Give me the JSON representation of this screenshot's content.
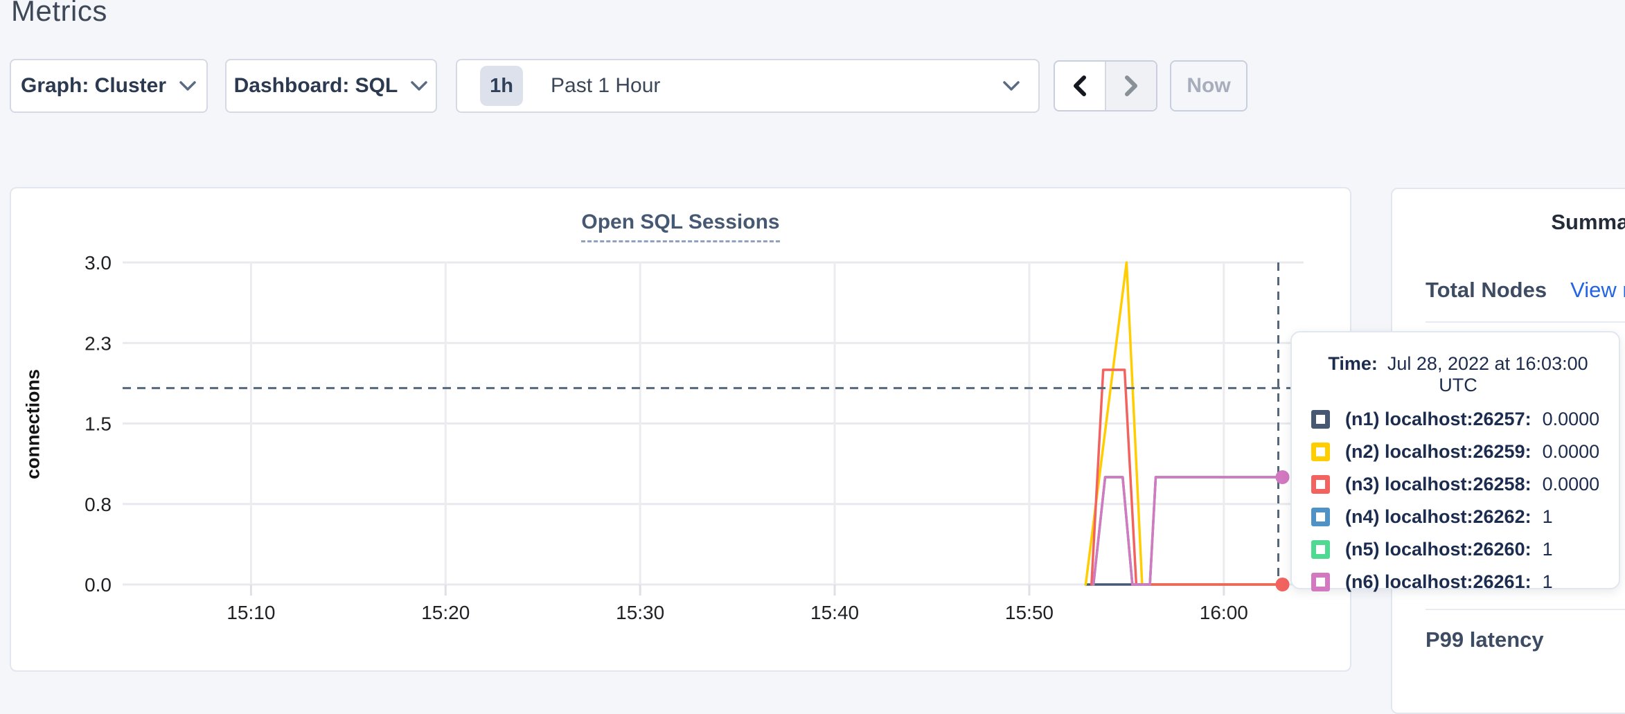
{
  "page": {
    "title": "Metrics"
  },
  "toolbar": {
    "graph_dropdown_label": "Graph: Cluster",
    "dashboard_dropdown_label": "Dashboard: SQL",
    "time_window": {
      "badge": "1h",
      "label": "Past 1 Hour"
    },
    "now_button_label": "Now"
  },
  "chart_data": {
    "type": "line",
    "title": "Open SQL Sessions",
    "ylabel": "connections",
    "ylim": [
      0,
      3.0
    ],
    "grid": true,
    "y_ticks": [
      {
        "v": 0.0,
        "label": "0.0"
      },
      {
        "v": 0.75,
        "label": "0.8"
      },
      {
        "v": 1.5,
        "label": "1.5"
      },
      {
        "v": 2.25,
        "label": "2.3"
      },
      {
        "v": 3.0,
        "label": "3.0"
      }
    ],
    "x_ticks": [
      {
        "t": 10,
        "label": "15:10"
      },
      {
        "t": 20,
        "label": "15:20"
      },
      {
        "t": 30,
        "label": "15:30"
      },
      {
        "t": 40,
        "label": "15:40"
      },
      {
        "t": 50,
        "label": "15:50"
      },
      {
        "t": 60,
        "label": "16:00"
      }
    ],
    "x_domain_minutes_after_1500": [
      3.4,
      64.1
    ],
    "series": [
      {
        "name": "(n1) localhost:26257",
        "color": "#475872",
        "points": [
          [
            52.9,
            0
          ],
          [
            62.8,
            0
          ]
        ]
      },
      {
        "name": "(n2) localhost:26259",
        "color": "#ffcd00",
        "points": [
          [
            52.9,
            0
          ],
          [
            55.0,
            3
          ],
          [
            55.8,
            0
          ],
          [
            62.8,
            0
          ]
        ]
      },
      {
        "name": "(n3) localhost:26258",
        "color": "#f2635f",
        "points": [
          [
            53.2,
            0
          ],
          [
            53.8,
            2
          ],
          [
            54.9,
            2
          ],
          [
            55.5,
            0
          ],
          [
            62.8,
            0
          ]
        ]
      },
      {
        "name": "(n4) localhost:26262",
        "color": "#4f93c6",
        "points": [
          [
            53.3,
            0
          ],
          [
            53.9,
            1
          ],
          [
            54.8,
            1
          ],
          [
            55.3,
            0
          ],
          [
            56.2,
            0
          ],
          [
            56.5,
            1
          ],
          [
            62.8,
            1
          ]
        ]
      },
      {
        "name": "(n5) localhost:26260",
        "color": "#4fd992",
        "points": [
          [
            53.3,
            0
          ],
          [
            53.9,
            1
          ],
          [
            54.8,
            1
          ],
          [
            55.3,
            0
          ],
          [
            56.2,
            0
          ],
          [
            56.5,
            1
          ],
          [
            62.8,
            1
          ]
        ]
      },
      {
        "name": "(n6) localhost:26261",
        "color": "#d279c1",
        "points": [
          [
            53.3,
            0
          ],
          [
            53.9,
            1
          ],
          [
            54.8,
            1
          ],
          [
            55.3,
            0
          ],
          [
            56.2,
            0
          ],
          [
            56.5,
            1
          ],
          [
            62.8,
            1
          ]
        ]
      }
    ],
    "crosshair": {
      "t": 62.8,
      "hover_value": 1.83,
      "dots": [
        {
          "t": 62.8,
          "v": 1,
          "color": "#d279c1"
        },
        {
          "t": 62.8,
          "v": 0,
          "color": "#f2635f"
        }
      ]
    }
  },
  "tooltip": {
    "time_label": "Time:",
    "time_value": "Jul 28, 2022 at 16:03:00 UTC",
    "rows": [
      {
        "swatch_color": "#475872",
        "label": "(n1) localhost:26257:",
        "value": "0.0000"
      },
      {
        "swatch_color": "#ffcd00",
        "label": "(n2) localhost:26259:",
        "value": "0.0000"
      },
      {
        "swatch_color": "#f2635f",
        "label": "(n3) localhost:26258:",
        "value": "0.0000"
      },
      {
        "swatch_color": "#4f93c6",
        "label": "(n4) localhost:26262:",
        "value": "1"
      },
      {
        "swatch_color": "#4fd992",
        "label": "(n5) localhost:26260:",
        "value": "1"
      },
      {
        "swatch_color": "#d279c1",
        "label": "(n6) localhost:26261:",
        "value": "1"
      }
    ]
  },
  "sidebar": {
    "heading": "Summary",
    "total_nodes_label": "Total Nodes",
    "view_nodes_link": "View nodes",
    "p99_label": "P99 latency"
  },
  "colors": {
    "page_bg": "#f4f6fa",
    "card_border": "#e2e6ee",
    "gridline": "#e9eaee",
    "crosshair": "#54667a",
    "link_blue": "#2264e6",
    "accent_navy": "#1c2c4e"
  }
}
